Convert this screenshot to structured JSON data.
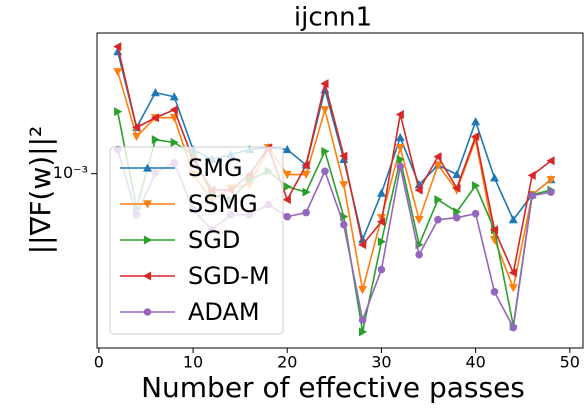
{
  "chart_data": {
    "type": "line",
    "title": "ijcnn1",
    "x_label": "Number of effective passes",
    "y_label": "||∇F(w)||²",
    "x": [
      2,
      4,
      6,
      8,
      10,
      12,
      14,
      16,
      18,
      20,
      22,
      24,
      26,
      28,
      30,
      32,
      34,
      36,
      38,
      40,
      42,
      44,
      46,
      48
    ],
    "xlim": [
      -0.2,
      51.4
    ],
    "xticks": [
      0,
      10,
      20,
      30,
      40,
      50
    ],
    "ylim": [
      0.000121,
      0.0055
    ],
    "yticks": [
      {
        "value": 0.001,
        "label": "10⁻³"
      }
    ],
    "y_scale": "log",
    "legend": "center left",
    "series": [
      {
        "name": "SMG",
        "color": "#1f77b4",
        "marker": "^",
        "values": [
          0.00439,
          0.00175,
          0.00267,
          0.00254,
          0.00134,
          0.00119,
          0.00126,
          0.00134,
          0.00137,
          0.00134,
          0.00111,
          0.00277,
          0.00119,
          0.00045,
          0.00079,
          0.00155,
          0.000875,
          0.00111,
          0.00099,
          0.00188,
          0.00095,
          0.000573,
          0.000775,
          0.00093
        ]
      },
      {
        "name": "SSMG",
        "color": "#ff7f0e",
        "marker": "v",
        "values": [
          0.00344,
          0.00157,
          0.00197,
          0.00197,
          0.00099,
          0.00073,
          0.00084,
          0.000875,
          0.00137,
          0.00099,
          0.00099,
          0.00217,
          0.000875,
          0.000245,
          0.000587,
          0.00137,
          0.000573,
          0.00111,
          0.00082,
          0.00151,
          0.00045,
          0.000251,
          0.000775,
          0.00093
        ]
      },
      {
        "name": "SGD",
        "color": "#2ca02c",
        "marker": ">",
        "values": [
          0.00212,
          0.000662,
          0.00151,
          0.00146,
          0.00126,
          0.000775,
          0.00073,
          0.00093,
          0.00103,
          0.000855,
          0.0008,
          0.00131,
          0.000594,
          0.000147,
          0.000439,
          0.00119,
          0.000423,
          0.00073,
          0.00063,
          0.000865,
          0.000507,
          0.000158,
          0.000775,
          0.00082
        ]
      },
      {
        "name": "SGD-M",
        "color": "#d62728",
        "marker": "<",
        "values": [
          0.00466,
          0.00175,
          0.00197,
          0.00217,
          0.00119,
          0.00082,
          0.00082,
          0.00099,
          0.00137,
          0.00073,
          0.00111,
          0.00298,
          0.00124,
          0.000423,
          0.000559,
          0.00205,
          0.00082,
          0.00123,
          0.00084,
          0.00157,
          0.000507,
          0.000301,
          0.00098,
          0.00117
        ]
      },
      {
        "name": "ADAM",
        "color": "#9467bd",
        "marker": "o",
        "values": [
          0.00134,
          0.000608,
          0.00101,
          0.00114,
          0.000647,
          0.000507,
          0.000608,
          0.000608,
          0.000687,
          0.000594,
          0.000624,
          0.00103,
          0.000539,
          0.00017,
          0.000313,
          0.00109,
          0.000375,
          0.000573,
          0.000587,
          0.000616,
          0.000239,
          0.000155,
          0.000766,
          0.0008
        ]
      }
    ]
  }
}
